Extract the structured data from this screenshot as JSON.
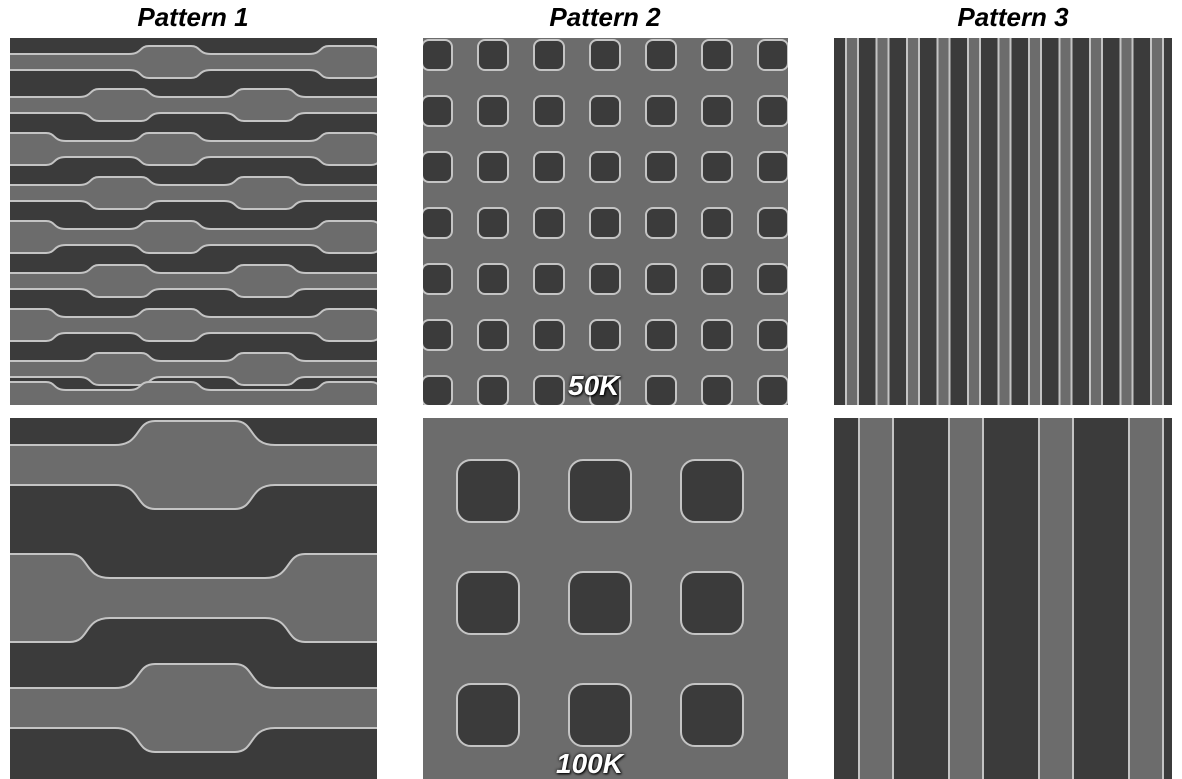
{
  "columns": [
    {
      "title": "Pattern 1"
    },
    {
      "title": "Pattern 2"
    },
    {
      "title": "Pattern 3"
    }
  ],
  "magnifications": {
    "row1": "50K",
    "row2": "100K"
  }
}
